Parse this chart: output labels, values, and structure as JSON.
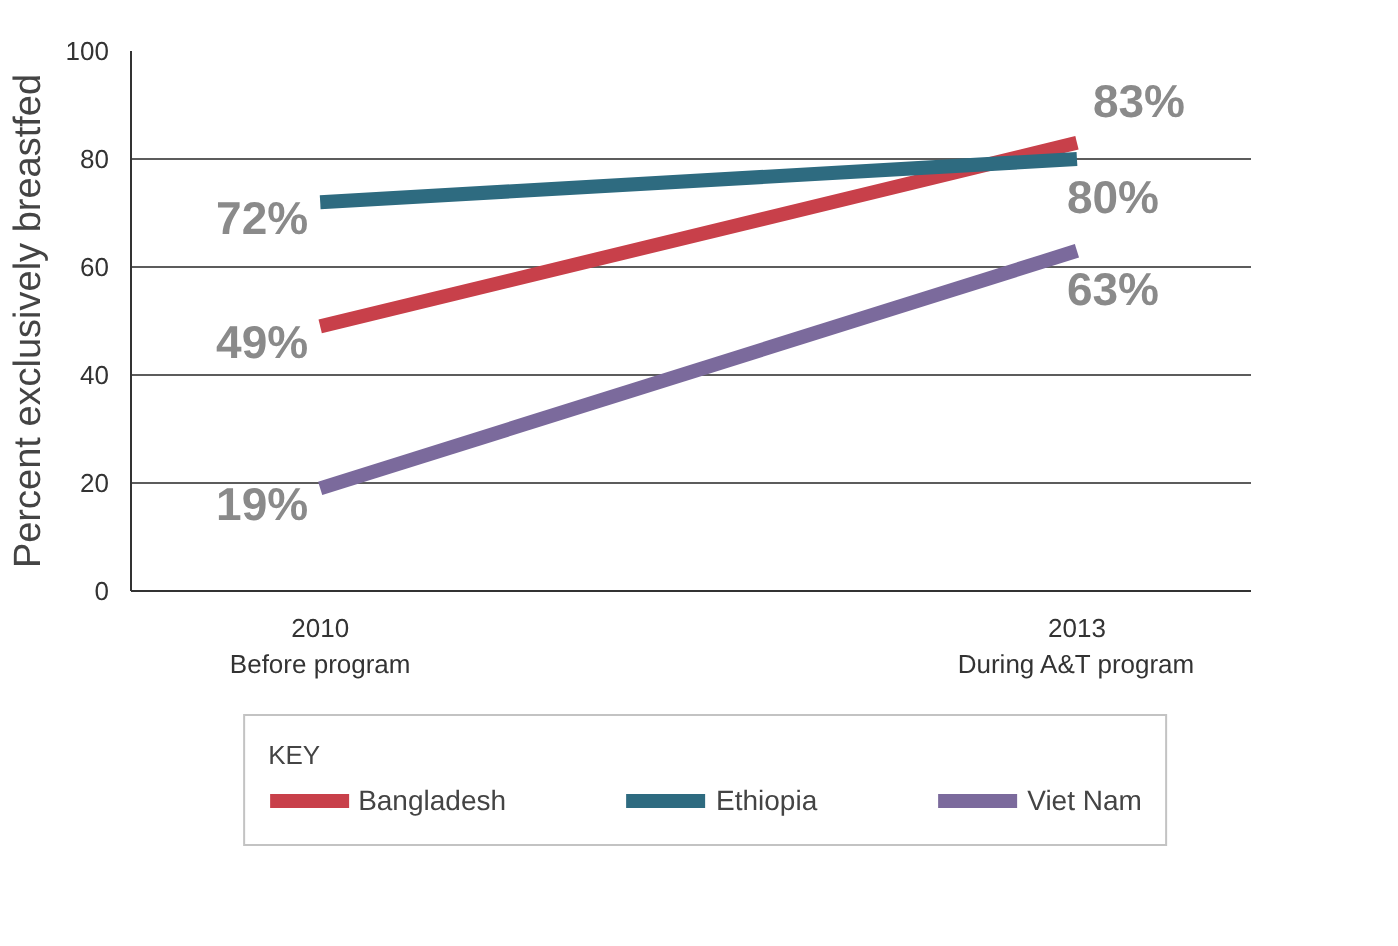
{
  "chart_data": {
    "type": "line",
    "ylabel": "Percent exclusively breastfed",
    "legend_title": "KEY",
    "legend": "bottom",
    "grid": "y",
    "ylim": [
      0,
      100
    ],
    "yticks": [
      0,
      20,
      40,
      60,
      80,
      100
    ],
    "categories": [
      "2010\nBefore program",
      "2013\nDuring A&T program"
    ],
    "series": [
      {
        "name": "Bangladesh",
        "color": "#c8404a",
        "values": [
          49,
          83
        ],
        "value_labels": [
          "49%",
          "83%"
        ]
      },
      {
        "name": "Ethiopia",
        "color": "#2e6b80",
        "values": [
          72,
          80
        ],
        "value_labels": [
          "72%",
          "80%"
        ]
      },
      {
        "name": "Viet Nam",
        "color": "#7b6a9c",
        "values": [
          19,
          63
        ],
        "value_labels": [
          "19%",
          "63%"
        ]
      }
    ]
  }
}
